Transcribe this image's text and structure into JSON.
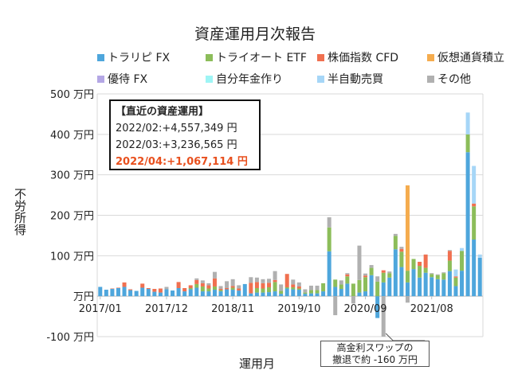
{
  "chart_data": {
    "type": "bar",
    "stacked": true,
    "title": "資産運用月次報告",
    "xlabel": "運用月",
    "ylabel": "不労所得",
    "ylim": [
      -100,
      500
    ],
    "yticks": [
      -100,
      0,
      100,
      200,
      300,
      400,
      500
    ],
    "ytick_labels": [
      "-100 万円",
      "万円",
      "100 万円",
      "200 万円",
      "300 万円",
      "400 万円",
      "500 万円"
    ],
    "xtick_labels": [
      "2017/01",
      "2017/12",
      "2018/11",
      "2019/10",
      "2020/09",
      "2021/08"
    ],
    "start_month": "2017/01",
    "end_month": "2022/04",
    "unit": "万円",
    "grid": true,
    "legend_position": "top",
    "series": [
      {
        "name": "トラリピ FX",
        "color": "#4ea6dc",
        "values": [
          23,
          16,
          18,
          20,
          23,
          15,
          13,
          21,
          18,
          11,
          9,
          17,
          14,
          20,
          12,
          17,
          21,
          12,
          12,
          16,
          12,
          17,
          16,
          14,
          30,
          7,
          9,
          9,
          10,
          12,
          6,
          19,
          17,
          16,
          6,
          7,
          7,
          12,
          111,
          23,
          18,
          31,
          0,
          9,
          12,
          52,
          -54,
          34,
          46,
          116,
          72,
          34,
          67,
          46,
          58,
          47,
          42,
          41,
          62,
          25,
          63,
          356,
          140,
          95
        ]
      },
      {
        "name": "トライオート ETF",
        "color": "#8cbd5a",
        "values": [
          0,
          0,
          0,
          0,
          0,
          0,
          0,
          0,
          0,
          0,
          0,
          0,
          0,
          0,
          0,
          3,
          9,
          12,
          7,
          8,
          3,
          0,
          5,
          0,
          0,
          0,
          11,
          10,
          12,
          23,
          7,
          3,
          5,
          3,
          3,
          8,
          8,
          20,
          59,
          18,
          11,
          18,
          31,
          31,
          35,
          18,
          36,
          24,
          11,
          33,
          38,
          29,
          25,
          29,
          12,
          8,
          10,
          16,
          26,
          21,
          49,
          44,
          82,
          0
        ]
      },
      {
        "name": "株価指数 CFD",
        "color": "#f07050",
        "values": [
          0,
          0,
          1,
          1,
          11,
          2,
          0,
          10,
          2,
          7,
          10,
          0,
          0,
          15,
          8,
          7,
          10,
          8,
          8,
          20,
          3,
          3,
          4,
          5,
          0,
          26,
          15,
          13,
          11,
          5,
          0,
          33,
          7,
          5,
          0,
          0,
          0,
          0,
          0,
          0,
          0,
          5,
          0,
          0,
          4,
          0,
          0,
          6,
          0,
          0,
          7,
          0,
          0,
          10,
          33,
          0,
          0,
          0,
          24,
          3,
          0,
          0,
          7,
          0
        ]
      },
      {
        "name": "仮想通貨積立",
        "color": "#f5ac4e",
        "values": [
          0,
          0,
          0,
          0,
          0,
          0,
          0,
          0,
          0,
          0,
          0,
          0,
          0,
          0,
          0,
          0,
          0,
          0,
          0,
          0,
          0,
          0,
          0,
          0,
          0,
          0,
          0,
          0,
          0,
          0,
          0,
          0,
          0,
          0,
          0,
          0,
          0,
          0,
          0,
          0,
          0,
          0,
          0,
          0,
          0,
          0,
          0,
          0,
          0,
          0,
          0,
          211,
          0,
          0,
          0,
          0,
          0,
          0,
          0,
          0,
          0,
          0,
          0,
          0
        ]
      },
      {
        "name": "優待 FX",
        "color": "#b4a7e5",
        "values": [
          0,
          0,
          0,
          0,
          0,
          0,
          0,
          0,
          0,
          0,
          0,
          0,
          0,
          0,
          0,
          0,
          0,
          0,
          0,
          0,
          0,
          0,
          0,
          0,
          0,
          0,
          0,
          0,
          0,
          0,
          0,
          0,
          0,
          0,
          0,
          0,
          0,
          0,
          0,
          0,
          0,
          0,
          0,
          0,
          0,
          0,
          0,
          0,
          0,
          0,
          0,
          0,
          0,
          0,
          0,
          0,
          0,
          0,
          0,
          0,
          0,
          0,
          0,
          0
        ]
      },
      {
        "name": "自分年金作り",
        "color": "#9ef5f5",
        "values": [
          0,
          0,
          0,
          0,
          0,
          0,
          0,
          0,
          0,
          0,
          0,
          0,
          0,
          0,
          0,
          0,
          0,
          0,
          0,
          0,
          0,
          0,
          0,
          0,
          0,
          0,
          0,
          0,
          0,
          0,
          0,
          0,
          0,
          0,
          0,
          0,
          0,
          0,
          0,
          0,
          0,
          0,
          0,
          0,
          0,
          0,
          0,
          0,
          0,
          0,
          0,
          0,
          0,
          0,
          0,
          0,
          0,
          0,
          0,
          0,
          0,
          0,
          0,
          0
        ]
      },
      {
        "name": "半自動売買",
        "color": "#a6d6f7",
        "values": [
          0,
          0,
          0,
          0,
          0,
          0,
          0,
          0,
          0,
          0,
          0,
          0,
          0,
          0,
          0,
          0,
          0,
          0,
          0,
          0,
          0,
          0,
          0,
          0,
          0,
          0,
          0,
          0,
          0,
          0,
          0,
          0,
          0,
          0,
          0,
          0,
          0,
          0,
          0,
          0,
          0,
          0,
          0,
          0,
          0,
          0,
          0,
          0,
          0,
          0,
          0,
          0,
          0,
          0,
          0,
          0,
          0,
          0,
          0,
          17,
          7,
          54,
          93,
          8
        ]
      },
      {
        "name": "その他",
        "color": "#b0b0b0",
        "values": [
          0,
          0,
          0,
          0,
          0,
          0,
          0,
          0,
          0,
          0,
          0,
          6,
          0,
          0,
          0,
          0,
          4,
          7,
          5,
          16,
          7,
          17,
          17,
          8,
          0,
          14,
          11,
          10,
          10,
          22,
          16,
          0,
          12,
          10,
          8,
          11,
          11,
          0,
          25,
          -47,
          10,
          3,
          -18,
          85,
          5,
          7,
          13,
          -100,
          4,
          5,
          5,
          -16,
          0,
          0,
          0,
          2,
          2,
          2,
          2,
          0,
          0,
          0,
          0,
          0
        ]
      }
    ],
    "annotations": {
      "box_title": "【直近の資産運用】",
      "recent": [
        {
          "text": "2022/02:+4,557,349 円",
          "highlight": false
        },
        {
          "text": "2022/03:+3,236,565 円",
          "highlight": false
        },
        {
          "text": "2022/04:+1,067,114 円",
          "highlight": true
        }
      ],
      "highlight_color": "#e8501e",
      "callout_line1": "高金利スワップの",
      "callout_line2": "撤退で約 -160 万円"
    }
  }
}
